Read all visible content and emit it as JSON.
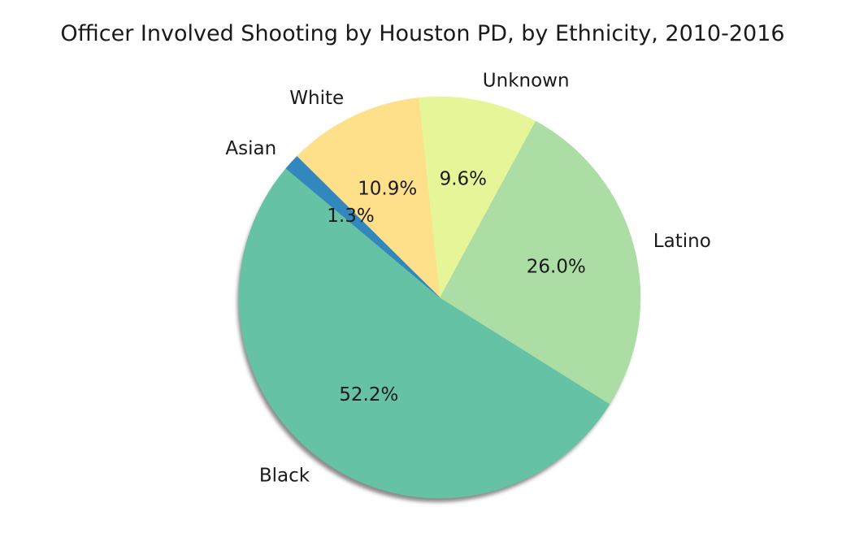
{
  "chart_data": {
    "type": "pie",
    "title": "Officer Involved Shooting by Houston PD, by Ethnicity, 2010-2016",
    "categories": [
      "Black",
      "Latino",
      "Unknown",
      "White",
      "Asian"
    ],
    "values": [
      52.2,
      26.0,
      9.6,
      10.9,
      1.3
    ],
    "percent_labels": [
      "52.2%",
      "26.0%",
      "9.6%",
      "10.9%",
      "1.3%"
    ],
    "colors": [
      "#66c2a5",
      "#abdda4",
      "#e6f598",
      "#fee08b",
      "#3288bd"
    ],
    "start_angle_deg": 140,
    "shadow": true,
    "legend": "none"
  }
}
